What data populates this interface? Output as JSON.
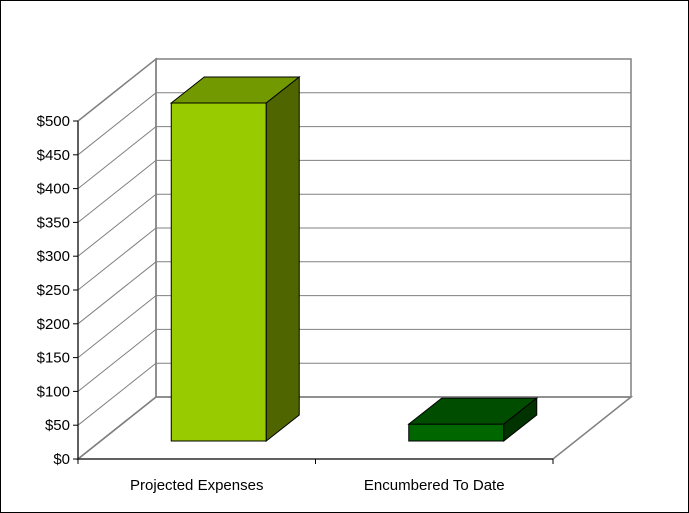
{
  "chart_data": {
    "type": "bar",
    "categories": [
      "Projected Expenses",
      "Encumbered To Date"
    ],
    "values": [
      500,
      25
    ],
    "ylim": [
      0,
      500
    ],
    "y_ticks": [
      "$0",
      "$50",
      "$100",
      "$150",
      "$200",
      "$250",
      "$300",
      "$350",
      "$400",
      "$450",
      "$500"
    ],
    "grid": true,
    "legend": "none",
    "colors": {
      "series": [
        {
          "front": "#99CC00",
          "top": "#739900",
          "side": "#4F6600"
        },
        {
          "front": "#006600",
          "top": "#004D00",
          "side": "#003300"
        }
      ],
      "gridline": "#808080",
      "wall": "#ffffff"
    }
  }
}
